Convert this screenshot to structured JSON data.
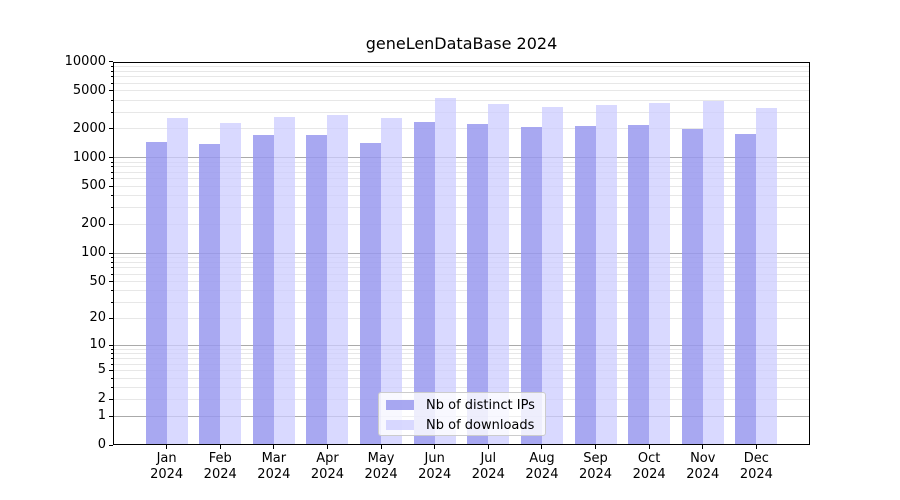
{
  "chart_data": {
    "type": "bar",
    "title": "geneLenDataBase 2024",
    "categories": [
      "Jan 2024",
      "Feb 2024",
      "Mar 2024",
      "Apr 2024",
      "May 2024",
      "Jun 2024",
      "Jul 2024",
      "Aug 2024",
      "Sep 2024",
      "Oct 2024",
      "Nov 2024",
      "Dec 2024"
    ],
    "series": [
      {
        "name": "Nb of distinct IPs",
        "color": "rgba(153,153,238,0.85)",
        "values": [
          1450,
          1400,
          1730,
          1720,
          1440,
          2380,
          2250,
          2080,
          2160,
          2210,
          2010,
          1760
        ]
      },
      {
        "name": "Nb of downloads",
        "color": "rgba(204,204,255,0.75)",
        "values": [
          2620,
          2320,
          2660,
          2820,
          2580,
          4180,
          3610,
          3390,
          3560,
          3730,
          3920,
          3330
        ]
      }
    ],
    "y_scale": "log1p",
    "ylim": [
      0,
      10000
    ],
    "y_ticks": [
      0,
      1,
      2,
      5,
      10,
      20,
      50,
      100,
      200,
      500,
      1000,
      2000,
      5000,
      10000
    ],
    "y_major_gridlines": [
      1,
      10,
      100,
      1000,
      10000
    ],
    "grid": {
      "major_color": "#aaaaaa",
      "minor_color": "#e7e7e7"
    },
    "legend_position": "lower center"
  }
}
